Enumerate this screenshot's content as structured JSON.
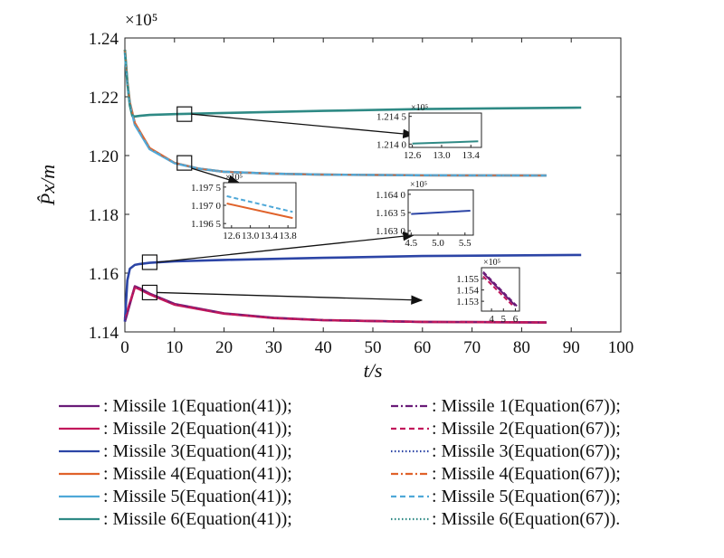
{
  "chart_data": {
    "type": "line",
    "title": "",
    "xlabel": "t/s",
    "ylabel": "P̂x/m",
    "scale_note": "×10⁵",
    "xlim": [
      0,
      100
    ],
    "ylim": [
      1.14,
      1.24
    ],
    "x_ticks": [
      "0",
      "10",
      "20",
      "30",
      "40",
      "50",
      "60",
      "70",
      "80",
      "90",
      "100"
    ],
    "y_ticks": [
      "1.14",
      "1.16",
      "1.18",
      "1.20",
      "1.22",
      "1.24"
    ],
    "grid": false,
    "colors": {
      "m1": "#6a1b78",
      "m2": "#c2185b",
      "m3": "#2c45a6",
      "m4": "#e0622a",
      "m5": "#4fa8d8",
      "m6": "#2f8a85"
    },
    "series": [
      {
        "name": "Missile 1",
        "color_key": "m1",
        "x": [
          0,
          2,
          3,
          5,
          10,
          20,
          30,
          40,
          60,
          85
        ],
        "y": [
          1.1435,
          1.1555,
          1.1548,
          1.153,
          1.1495,
          1.1463,
          1.1448,
          1.144,
          1.1434,
          1.1432
        ]
      },
      {
        "name": "Missile 2",
        "color_key": "m2",
        "x": [
          0,
          2,
          3,
          5,
          10,
          20,
          30,
          40,
          60,
          85
        ],
        "y": [
          1.1445,
          1.1552,
          1.1545,
          1.1528,
          1.1493,
          1.1462,
          1.1447,
          1.144,
          1.1434,
          1.1432
        ]
      },
      {
        "name": "Missile 3",
        "color_key": "m3",
        "x": [
          0,
          0.5,
          1,
          2,
          3,
          5,
          10,
          20,
          40,
          60,
          92
        ],
        "y": [
          1.1435,
          1.1575,
          1.1615,
          1.1628,
          1.1631,
          1.1635,
          1.164,
          1.1645,
          1.1652,
          1.1658,
          1.1662
        ]
      },
      {
        "name": "Missile 4",
        "color_key": "m4",
        "x": [
          0,
          0.5,
          1,
          2,
          5,
          10,
          15,
          20,
          30,
          40,
          60,
          85
        ],
        "y": [
          1.236,
          1.225,
          1.218,
          1.211,
          1.2025,
          1.1975,
          1.1955,
          1.1945,
          1.1938,
          1.1935,
          1.1933,
          1.1932
        ]
      },
      {
        "name": "Missile 5",
        "color_key": "m5",
        "x": [
          0,
          0.5,
          1,
          2,
          5,
          10,
          15,
          20,
          30,
          40,
          60,
          85
        ],
        "y": [
          1.235,
          1.2245,
          1.2175,
          1.2105,
          1.2022,
          1.1974,
          1.1955,
          1.1945,
          1.1938,
          1.1935,
          1.1933,
          1.1932
        ]
      },
      {
        "name": "Missile 6",
        "color_key": "m6",
        "x": [
          0,
          0.5,
          1,
          1.5,
          2,
          3,
          5,
          10,
          20,
          40,
          60,
          92
        ],
        "y": [
          1.236,
          1.225,
          1.217,
          1.2135,
          1.2133,
          1.2135,
          1.2138,
          1.2141,
          1.2145,
          1.2152,
          1.2158,
          1.2163
        ]
      }
    ],
    "insets": [
      {
        "id": "inset-a",
        "scale_note": "×10⁵",
        "x_ticks": [
          "12.6",
          "13.0",
          "13.4"
        ],
        "y_ticks": [
          "1.214 5",
          "1.214 0"
        ],
        "series": [
          {
            "color_key": "m6",
            "dashed": false,
            "x": [
              12.6,
              13.5
            ],
            "y": [
              1.21401,
              1.21405
            ]
          }
        ]
      },
      {
        "id": "inset-b",
        "scale_note": "×10⁵",
        "x_ticks": [
          "12.6",
          "13.0",
          "13.4",
          "13.8"
        ],
        "y_ticks": [
          "1.197 5",
          "1.197 0",
          "1.196 5"
        ],
        "series": [
          {
            "color_key": "m4",
            "dashed": false,
            "x": [
              12.5,
              13.9
            ],
            "y": [
              1.19705,
              1.19665
            ]
          },
          {
            "color_key": "m5",
            "dashed": true,
            "x": [
              12.5,
              13.9
            ],
            "y": [
              1.19725,
              1.19682
            ]
          }
        ]
      },
      {
        "id": "inset-c",
        "scale_note": "×10⁵",
        "x_ticks": [
          "4.5",
          "5.0",
          "5.5"
        ],
        "y_ticks": [
          "1.164 0",
          "1.163 5",
          "1.163 0"
        ],
        "series": [
          {
            "color_key": "m3",
            "dashed": false,
            "x": [
              4.5,
              5.6
            ],
            "y": [
              1.16346,
              1.16355
            ]
          }
        ]
      },
      {
        "id": "inset-d",
        "scale_note": "×10⁵",
        "x_ticks": [
          "4",
          "5",
          "6"
        ],
        "y_ticks": [
          "1.155",
          "1.154",
          "1.153"
        ],
        "series": [
          {
            "color_key": "m1",
            "dashed": false,
            "x": [
              3.3,
              6.0
            ],
            "y": [
              1.1555,
              1.1526
            ]
          },
          {
            "color_key": "m1",
            "dashed": true,
            "x": [
              3.3,
              6.2
            ],
            "y": [
              1.1556,
              1.1525
            ]
          },
          {
            "color_key": "m2",
            "dashed": true,
            "x": [
              3.3,
              5.8
            ],
            "y": [
              1.1552,
              1.1526
            ]
          }
        ]
      }
    ]
  },
  "legend": {
    "left": [
      {
        "label": ": Missile 1(Equation(41));",
        "color_key": "m1",
        "style": "solid"
      },
      {
        "label": ": Missile 2(Equation(41));",
        "color_key": "m2",
        "style": "solid"
      },
      {
        "label": ": Missile 3(Equation(41));",
        "color_key": "m3",
        "style": "solid"
      },
      {
        "label": ": Missile 4(Equation(41));",
        "color_key": "m4",
        "style": "solid"
      },
      {
        "label": ": Missile 5(Equation(41));",
        "color_key": "m5",
        "style": "solid"
      },
      {
        "label": ": Missile 6(Equation(41));",
        "color_key": "m6",
        "style": "solid"
      }
    ],
    "right": [
      {
        "label": ": Missile 1(Equation(67));",
        "color_key": "m1",
        "style": "dashdot"
      },
      {
        "label": ": Missile 2(Equation(67));",
        "color_key": "m2",
        "style": "dashed"
      },
      {
        "label": ": Missile 3(Equation(67));",
        "color_key": "m3",
        "style": "dotted"
      },
      {
        "label": ": Missile 4(Equation(67));",
        "color_key": "m4",
        "style": "dashdot"
      },
      {
        "label": ": Missile 5(Equation(67));",
        "color_key": "m5",
        "style": "dashed"
      },
      {
        "label": ": Missile 6(Equation(67)).",
        "color_key": "m6",
        "style": "dotted"
      }
    ]
  }
}
